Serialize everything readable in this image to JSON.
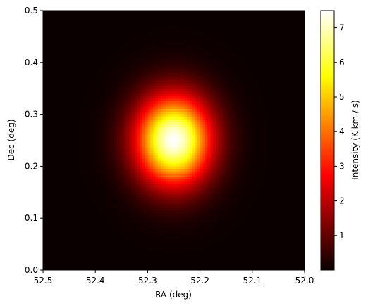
{
  "chart_data": {
    "type": "heatmap",
    "xlabel": "RA (deg)",
    "ylabel": "Dec (deg)",
    "xlim": [
      52.5,
      52.0
    ],
    "ylim": [
      0.0,
      0.5
    ],
    "x_ticks": [
      52.5,
      52.4,
      52.3,
      52.2,
      52.1,
      52.0
    ],
    "x_tick_labels": [
      "52.5",
      "52.4",
      "52.3",
      "52.2",
      "52.1",
      "52.0"
    ],
    "y_ticks": [
      0.0,
      0.1,
      0.2,
      0.3,
      0.4,
      0.5
    ],
    "y_tick_labels": [
      "0.0",
      "0.1",
      "0.2",
      "0.3",
      "0.4",
      "0.5"
    ],
    "colormap": "hot",
    "colorbar": {
      "label": "Intensity (K km / s)",
      "range": [
        0.0,
        7.5
      ],
      "ticks": [
        1,
        2,
        3,
        4,
        5,
        6,
        7
      ],
      "tick_labels": [
        "1",
        "2",
        "3",
        "4",
        "5",
        "6",
        "7"
      ]
    },
    "grid": false,
    "source": {
      "center_ra": 52.25,
      "center_dec": 0.25,
      "sigma_ra": 0.05,
      "sigma_dec": 0.06,
      "peak": 7.5
    }
  }
}
